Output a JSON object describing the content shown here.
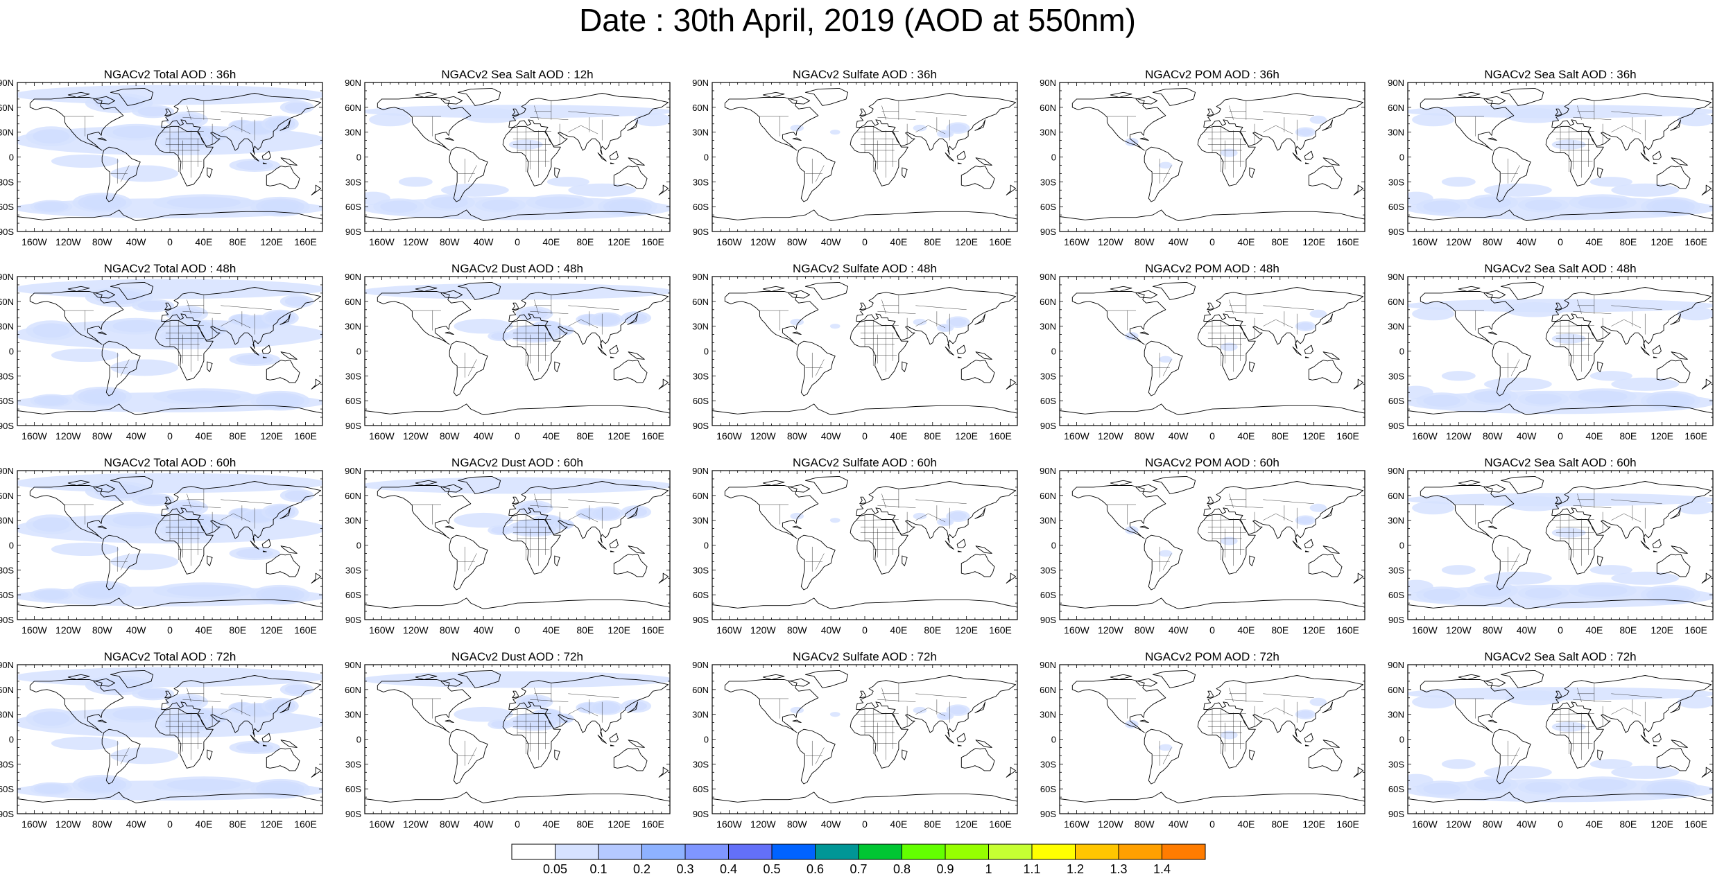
{
  "title": "Date : 30th April, 2019 (AOD at 550nm)",
  "lat_tick_labels": [
    "90N",
    "60N",
    "30N",
    "0",
    "30S",
    "60S",
    "90S"
  ],
  "lon_tick_labels": [
    "160W",
    "120W",
    "80W",
    "40W",
    "0",
    "40E",
    "80E",
    "120E",
    "160E"
  ],
  "panel_titles": [
    [
      "NGACv2 Total AOD : 36h",
      "NGACv2 Sea Salt  AOD : 12h",
      "NGACv2 Sulfate AOD : 36h",
      "NGACv2 POM AOD : 36h",
      "NGACv2 Sea Salt AOD : 36h"
    ],
    [
      "NGACv2 Total AOD : 48h",
      "NGACv2 Dust AOD : 48h",
      "NGACv2 Sulfate AOD : 48h",
      "NGACv2 POM AOD : 48h",
      "NGACv2 Sea Salt AOD : 48h"
    ],
    [
      "NGACv2 Total AOD : 60h",
      "NGACv2 Dust AOD : 60h",
      "NGACv2 Sulfate AOD : 60h",
      "NGACv2 POM AOD : 60h",
      "NGACv2 Sea Salt AOD : 60h"
    ],
    [
      "NGACv2 Total AOD : 72h",
      "NGACv2 Dust AOD : 72h",
      "NGACv2 Sulfate AOD : 72h",
      "NGACv2 POM AOD : 72h",
      "NGACv2 Sea Salt  AOD : 72h"
    ]
  ],
  "panel_species": [
    [
      "total",
      "seasalt",
      "sulfate",
      "pom",
      "seasalt"
    ],
    [
      "total",
      "dust",
      "sulfate",
      "pom",
      "seasalt"
    ],
    [
      "total",
      "dust",
      "sulfate",
      "pom",
      "seasalt"
    ],
    [
      "total",
      "dust",
      "sulfate",
      "pom",
      "seasalt"
    ]
  ],
  "colorbar": {
    "labels": [
      "0.05",
      "0.1",
      "0.2",
      "0.3",
      "0.4",
      "0.5",
      "0.6",
      "0.7",
      "0.8",
      "0.9",
      "1",
      "1.1",
      "1.2",
      "1.3",
      "1.4"
    ],
    "colors": [
      "#ffffff",
      "#d6e2ff",
      "#b5c9ff",
      "#8eb2ff",
      "#7f96ff",
      "#6370f8",
      "#0063ff",
      "#009696",
      "#00c633",
      "#63ff00",
      "#96ff00",
      "#c6ff33",
      "#ffff00",
      "#ffc600",
      "#ffa000",
      "#ff7c00",
      "#ff1900"
    ]
  }
}
